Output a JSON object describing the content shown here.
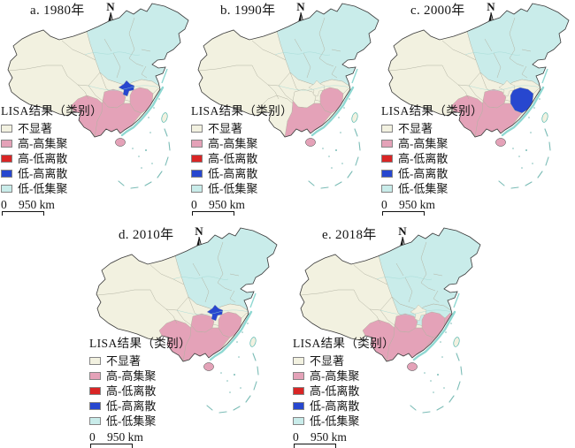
{
  "figure": {
    "panels": [
      {
        "id": "a",
        "title": "a. 1980年",
        "regions": {
          "north": "ll",
          "central": "ns",
          "jiangxi_fujian": "ns",
          "yunnan": "hh",
          "guizhou": "hh",
          "guangxi_guangdong": "hh",
          "hunan": "hh",
          "chongqing": "lh",
          "hainan": "hh",
          "taiwan": "ns"
        }
      },
      {
        "id": "b",
        "title": "b. 1990年",
        "regions": {
          "north": "ll",
          "central": "ns",
          "jiangxi_fujian": "ns",
          "yunnan": "ns",
          "guizhou": "ns",
          "guangxi_guangdong": "hh",
          "hunan": "hh",
          "chongqing": "ns",
          "hainan": "hh",
          "taiwan": "ns"
        }
      },
      {
        "id": "c",
        "title": "c. 2000年",
        "regions": {
          "north": "ll",
          "central": "ns",
          "jiangxi_fujian": "ns",
          "yunnan": "hh",
          "guizhou": "hh",
          "guangxi_guangdong": "hh",
          "hunan": "lh",
          "chongqing": "ns",
          "hainan": "hh",
          "taiwan": "ns"
        }
      },
      {
        "id": "d",
        "title": "d. 2010年",
        "regions": {
          "north": "ll",
          "central": "ns",
          "jiangxi_fujian": "ns",
          "yunnan": "hh",
          "guizhou": "hh",
          "guangxi_guangdong": "hh",
          "hunan": "hh",
          "chongqing": "lh",
          "hainan": "hh",
          "taiwan": "ns"
        }
      },
      {
        "id": "e",
        "title": "e. 2018年",
        "regions": {
          "north": "ll",
          "central": "ll",
          "jiangxi_fujian": "hh",
          "yunnan": "hh",
          "guizhou": "hh",
          "guangxi_guangdong": "hh",
          "hunan": "hh",
          "chongqing": "ns",
          "hainan": "hh",
          "taiwan": "ns"
        }
      }
    ],
    "north_label": "N",
    "legend": {
      "title": "LISA结果（类别）",
      "items": [
        {
          "key": "ns",
          "label": "不显著"
        },
        {
          "key": "hh",
          "label": "高-高集聚"
        },
        {
          "key": "hl",
          "label": "高-低离散"
        },
        {
          "key": "lh",
          "label": "低-高离散"
        },
        {
          "key": "ll",
          "label": "低-低集聚"
        }
      ]
    },
    "scalebar": {
      "zero": "0",
      "distance": "950 km"
    },
    "colors": {
      "ns": "#f2f1e0",
      "hh": "#e4a2b8",
      "hl": "#d92525",
      "lh": "#2747cf",
      "ll": "#c9ecea",
      "outline": "#3a3a3a",
      "province": "#b3b3a3",
      "coast": "#8fd8d2"
    }
  }
}
